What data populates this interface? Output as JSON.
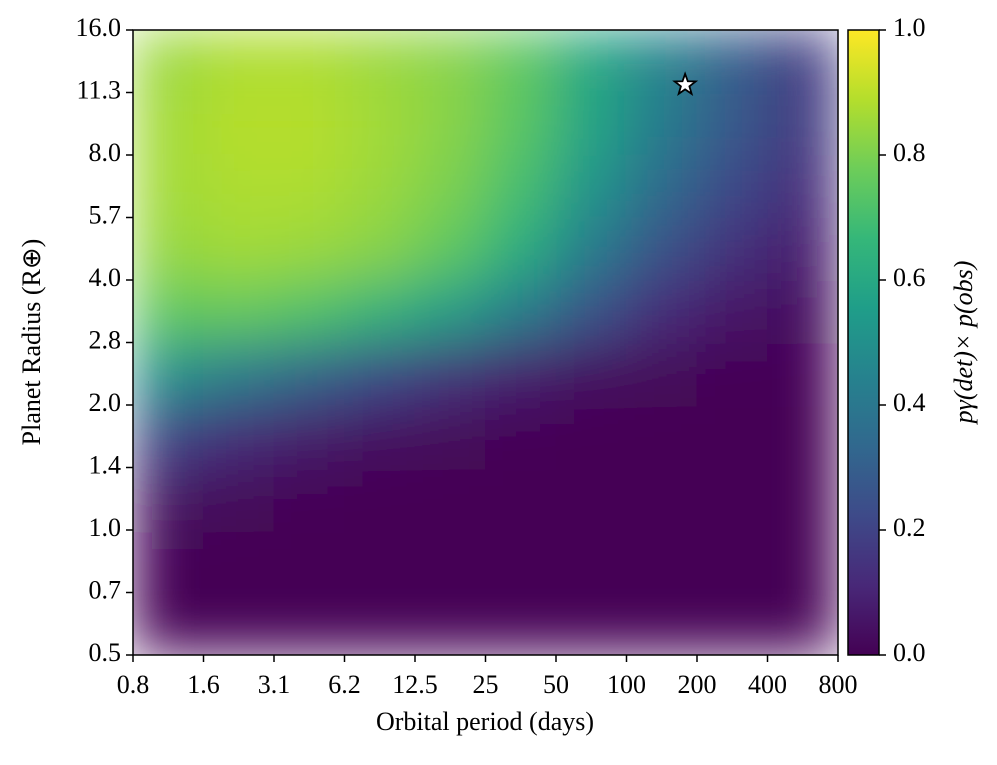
{
  "chart_data": {
    "type": "heatmap",
    "xlabel": "Orbital period (days)",
    "ylabel": "Planet Radius (R⊕)",
    "colorbar_label": "pγ(det)× p(obs)",
    "colormap": "viridis",
    "xscale": "log",
    "yscale": "log",
    "xlim": [
      0.78125,
      800
    ],
    "xticks": [
      {
        "value": 0.78125,
        "label": "0.8"
      },
      {
        "value": 1.5625,
        "label": "1.6"
      },
      {
        "value": 3.125,
        "label": "3.1"
      },
      {
        "value": 6.25,
        "label": "6.2"
      },
      12.5,
      25,
      50,
      100,
      200,
      400,
      800
    ],
    "ylim": [
      0.5,
      16
    ],
    "yticks": [
      0.5,
      {
        "value": 0.7071,
        "label": "0.7"
      },
      {
        "value": 1,
        "label": "1.0"
      },
      {
        "value": 1.4142,
        "label": "1.4"
      },
      {
        "value": 2,
        "label": "2.0"
      },
      {
        "value": 2.8284,
        "label": "2.8"
      },
      {
        "value": 4,
        "label": "4.0"
      },
      {
        "value": 5.6569,
        "label": "5.7"
      },
      {
        "value": 8,
        "label": "8.0"
      },
      {
        "value": 11.3137,
        "label": "11.3"
      },
      {
        "value": 16,
        "label": "16.0"
      }
    ],
    "clim": [
      0,
      1
    ],
    "cticks": [
      {
        "value": 0,
        "label": "0.0"
      },
      {
        "value": 0.2,
        "label": "0.2"
      },
      {
        "value": 0.4,
        "label": "0.4"
      },
      {
        "value": 0.6,
        "label": "0.6"
      },
      {
        "value": 0.8,
        "label": "0.8"
      },
      {
        "value": 1,
        "label": "1.0"
      }
    ],
    "x_edges": [
      0.78125,
      1.5625,
      3.125,
      6.25,
      12.5,
      25,
      50,
      100,
      200,
      400,
      800
    ],
    "y_edges": [
      0.5,
      0.7071,
      1,
      1.4142,
      2,
      2.8284,
      4,
      5.6569,
      8,
      11.3137,
      16
    ],
    "z": [
      [
        0,
        0,
        0,
        0,
        0,
        0,
        0,
        0,
        0,
        0
      ],
      [
        0.01,
        0,
        0,
        0,
        0,
        0,
        0,
        0,
        0,
        0
      ],
      [
        0.05,
        0.02,
        0.01,
        0,
        0,
        0,
        0,
        0,
        0,
        0
      ],
      [
        0.2,
        0.12,
        0.07,
        0.04,
        0.02,
        0.01,
        0,
        0,
        0,
        0
      ],
      [
        0.5,
        0.42,
        0.32,
        0.22,
        0.14,
        0.08,
        0.04,
        0.02,
        0.01,
        0.01
      ],
      [
        0.75,
        0.76,
        0.72,
        0.65,
        0.55,
        0.42,
        0.25,
        0.12,
        0.06,
        0.03
      ],
      [
        0.84,
        0.86,
        0.85,
        0.82,
        0.75,
        0.62,
        0.42,
        0.25,
        0.14,
        0.08
      ],
      [
        0.86,
        0.88,
        0.88,
        0.85,
        0.8,
        0.7,
        0.52,
        0.35,
        0.22,
        0.13
      ],
      [
        0.86,
        0.89,
        0.89,
        0.86,
        0.82,
        0.74,
        0.58,
        0.42,
        0.28,
        0.17
      ],
      [
        0.85,
        0.88,
        0.88,
        0.85,
        0.82,
        0.75,
        0.6,
        0.45,
        0.3,
        0.18
      ]
    ],
    "marker": {
      "x": 178,
      "y": 11.8
    }
  }
}
